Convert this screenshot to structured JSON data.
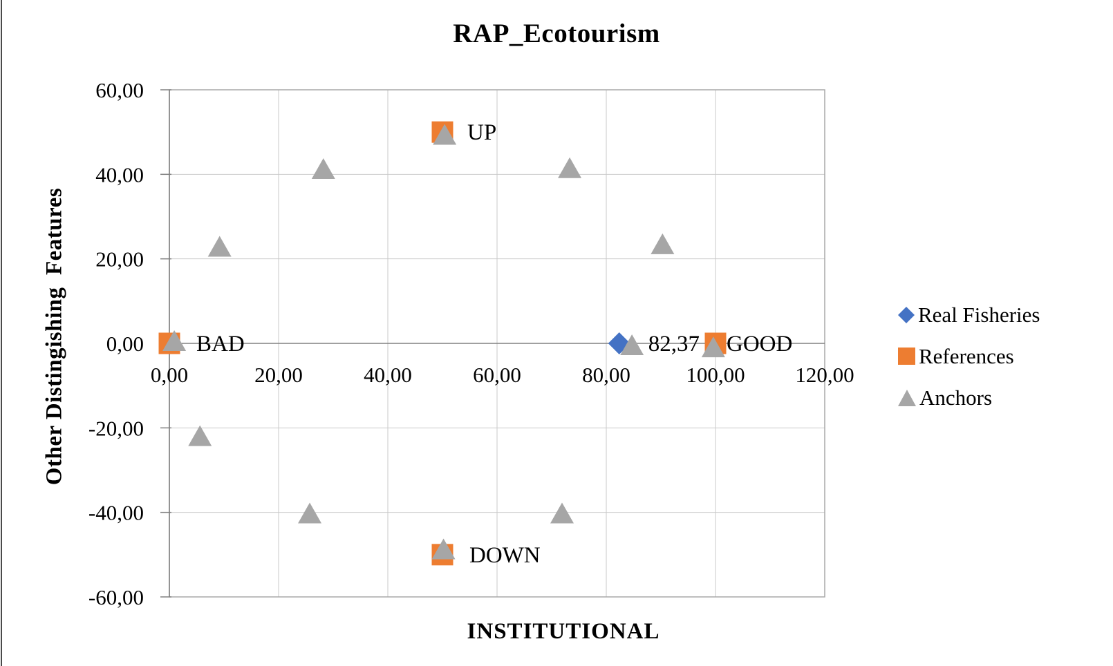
{
  "chart_data": {
    "type": "scatter",
    "title": "RAP_Ecotourism",
    "xlabel": "INSTITUTIONAL",
    "ylabel": "Other Distingishing  Features",
    "xlim": [
      0,
      120
    ],
    "ylim": [
      -60,
      60
    ],
    "grid": true,
    "legend_position": "right",
    "xticks": {
      "values": [
        0,
        20,
        40,
        60,
        80,
        100,
        120
      ],
      "labels": [
        "0,00",
        "20,00",
        "40,00",
        "60,00",
        "80,00",
        "100,00",
        "120,00"
      ]
    },
    "yticks": {
      "values": [
        -60,
        -40,
        -20,
        0,
        20,
        40,
        60
      ],
      "labels": [
        "-60,00",
        "-40,00",
        "-20,00",
        "0,00",
        "20,00",
        "40,00",
        "60,00"
      ]
    },
    "colors": {
      "real_fisheries": "#4472C4",
      "references": "#ED7D31",
      "anchors": "#A6A6A6",
      "gridline": "#C9C9C9",
      "axis": "#808080",
      "border": "#A8A8A8"
    },
    "series": [
      {
        "name": "Real Fisheries",
        "marker": "diamond",
        "color": "#4472C4",
        "points": [
          {
            "x": 82.37,
            "y": 0,
            "label": "82,37",
            "label_dx": 42
          }
        ]
      },
      {
        "name": "References",
        "marker": "square",
        "color": "#ED7D31",
        "points": [
          {
            "x": 0,
            "y": 0,
            "label": "BAD",
            "label_dx": 39
          },
          {
            "x": 50,
            "y": 50,
            "label": "UP",
            "label_dx": 36
          },
          {
            "x": 100,
            "y": 0,
            "label": "GOOD",
            "label_dx": 16
          },
          {
            "x": 50,
            "y": -50,
            "label": "DOWN",
            "label_dx": 39
          }
        ]
      },
      {
        "name": "Anchors",
        "marker": "triangle",
        "color": "#A6A6A6",
        "points": [
          {
            "x": 0.9,
            "y": 0.5
          },
          {
            "x": 9.2,
            "y": 22.8
          },
          {
            "x": 28.2,
            "y": 41.2
          },
          {
            "x": 50.4,
            "y": 49.3
          },
          {
            "x": 73.3,
            "y": 41.4
          },
          {
            "x": 90.3,
            "y": 23.4
          },
          {
            "x": 99.6,
            "y": -1.0
          },
          {
            "x": 84.7,
            "y": -0.5
          },
          {
            "x": 5.6,
            "y": -22.0
          },
          {
            "x": 25.7,
            "y": -40.3
          },
          {
            "x": 50.2,
            "y": -48.8
          },
          {
            "x": 71.9,
            "y": -40.3
          }
        ]
      }
    ]
  }
}
